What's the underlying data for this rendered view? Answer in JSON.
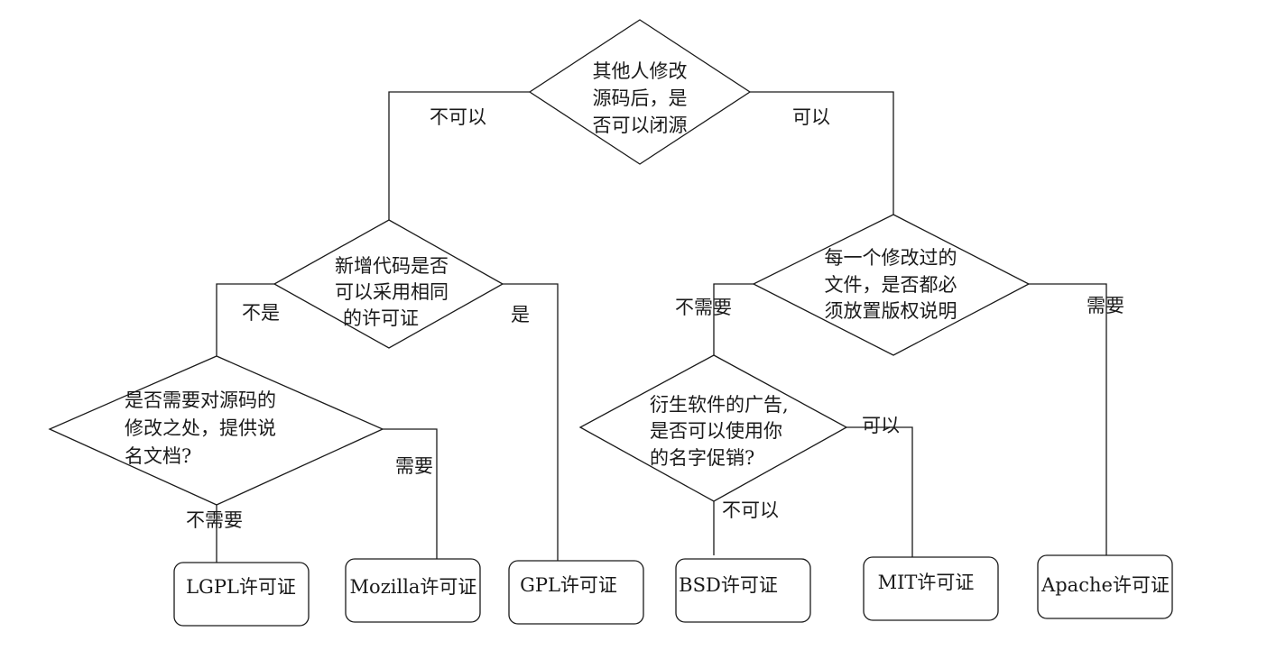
{
  "decisions": {
    "root": {
      "lines": [
        "其他人修改",
        "源码后，是",
        "否可以闭源"
      ]
    },
    "left": {
      "lines": [
        "新增代码是否",
        "可以采用相同",
        "的许可证"
      ]
    },
    "right": {
      "lines": [
        "每一个修改过的",
        "文件，是否都必",
        "须放置版权说明"
      ]
    },
    "doc": {
      "lines": [
        "是否需要对源码的",
        "修改之处，提供说",
        "名文档?"
      ]
    },
    "ad": {
      "lines": [
        "衍生软件的广告,",
        "是否可以使用你",
        "的名字促销?"
      ]
    }
  },
  "edges": {
    "root_no": "不可以",
    "root_yes": "可以",
    "left_no": "不是",
    "left_yes": "是",
    "right_no": "不需要",
    "right_yes": "需要",
    "doc_no": "不需要",
    "doc_yes": "需要",
    "ad_yes": "可以",
    "ad_no": "不可以"
  },
  "licenses": {
    "lgpl": "LGPL许可证",
    "mozilla": "Mozilla许可证",
    "gpl": "GPL许可证",
    "bsd": "BSD许可证",
    "mit": "MIT许可证",
    "apache": "Apache许可证"
  }
}
